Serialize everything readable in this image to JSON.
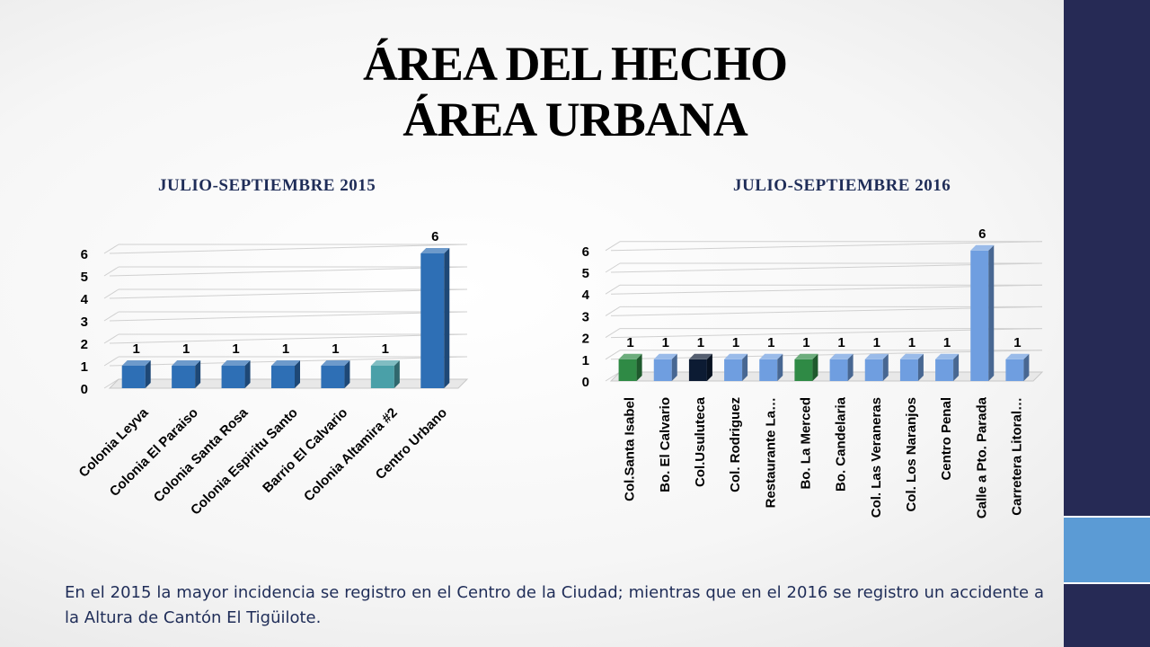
{
  "slide": {
    "title_line1": "ÁREA DEL HECHO",
    "title_line2": "ÁREA URBANA",
    "caption": "En el 2015 la mayor incidencia se registro en el Centro de la Ciudad; mientras que en el 2016 se registro un accidente a la Altura de Cantón El Tigüilote."
  },
  "colors": {
    "sidebar": "#262a55",
    "sidebar_accent": "#5b9bd5",
    "subtitle_text": "#1f2d58"
  },
  "chart_data": [
    {
      "type": "bar",
      "title": "JULIO-SEPTIEMBRE 2015",
      "categories": [
        "Colonia Leyva",
        "Colonia El Paraiso",
        "Colonia Santa Rosa",
        "Colonia Espiritu Santo",
        "Barrio El Calvario",
        "Colonia Altamira #2",
        "Centro Urbano"
      ],
      "values": [
        1,
        1,
        1,
        1,
        1,
        1,
        6
      ],
      "bar_colors": [
        "#2e6fb5",
        "#2e6fb5",
        "#2e6fb5",
        "#2e6fb5",
        "#2e6fb5",
        "#4aa0a8",
        "#2e6fb5"
      ],
      "ylim": [
        0,
        6
      ],
      "yticks": [
        0,
        1,
        2,
        3,
        4,
        5,
        6
      ],
      "grid": true,
      "data_labels": true
    },
    {
      "type": "bar",
      "title": "JULIO-SEPTIEMBRE 2016",
      "categories": [
        "Col.Santa Isabel",
        "Bo. El Calvario",
        "Col.Usuluteca",
        "Col. Rodriguez",
        "Restaurante La…",
        "Bo. La Merced",
        "Bo. Candelaria",
        "Col. Las Veraneras",
        "Col. Los Naranjos",
        "Centro Penal",
        "Calle a Pto. Parada",
        "Carretera Litoral…"
      ],
      "values": [
        1,
        1,
        1,
        1,
        1,
        1,
        1,
        1,
        1,
        1,
        6,
        1
      ],
      "bar_colors": [
        "#2f8a45",
        "#6f9ee0",
        "#0c1b33",
        "#6f9ee0",
        "#6f9ee0",
        "#2f8a45",
        "#6f9ee0",
        "#6f9ee0",
        "#6f9ee0",
        "#6f9ee0",
        "#6f9ee0",
        "#6f9ee0"
      ],
      "ylim": [
        0,
        6
      ],
      "yticks": [
        0,
        1,
        2,
        3,
        4,
        5,
        6
      ],
      "grid": true,
      "data_labels": true
    }
  ]
}
